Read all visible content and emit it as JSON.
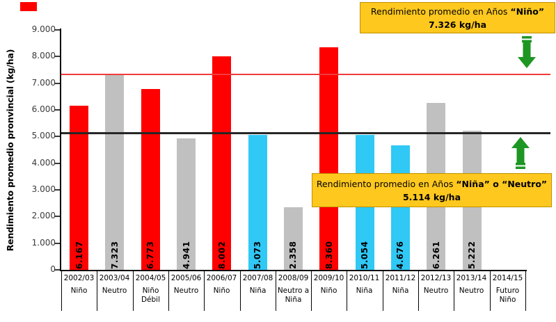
{
  "chart_data": {
    "type": "bar",
    "title": "",
    "ylabel": "Rendimiento promedio pronvincial (kg/ha)",
    "ylim": [
      0,
      9000
    ],
    "grid": false,
    "legend_position": "none",
    "y_tick_labels": [
      "9.000",
      "8.000",
      "7.000",
      "6.000",
      "5.000",
      "4.000",
      "3.000",
      "2.000",
      "1.000",
      "0"
    ],
    "categories": [
      "2002/03",
      "2003/04",
      "2004/05",
      "2005/06",
      "2006/07",
      "2007/08",
      "2008/09",
      "2009/10",
      "2010/11",
      "2011/12",
      "2012/13",
      "2013/14",
      "2014/15"
    ],
    "conditions": [
      "Niño",
      "Neutro",
      "Niño Débil",
      "Neutro",
      "Niño",
      "Niña",
      "Neutro a Niña",
      "Niño",
      "Niña",
      "Niña",
      "Neutro",
      "Neutro",
      "Futuro Niño"
    ],
    "values": [
      6167,
      7323,
      6773,
      4941,
      8002,
      5073,
      2358,
      8360,
      5054,
      4676,
      6261,
      5222,
      null
    ],
    "value_labels": [
      "6.167",
      "7.323",
      "6.773",
      "4.941",
      "8.002",
      "5.073",
      "2.358",
      "8.360",
      "5.054",
      "4.676",
      "6.261",
      "5.222",
      ""
    ],
    "bar_color_keys": [
      "nino",
      "neutro",
      "nino",
      "neutro",
      "nino",
      "nina",
      "neutro",
      "nino",
      "nina",
      "nina",
      "neutro",
      "neutro",
      null
    ],
    "reference_lines": [
      {
        "name": "promedio_nino",
        "value": 7326,
        "color": "#F23B3B",
        "thickness": 2
      },
      {
        "name": "promedio_nina_neutro",
        "value": 5114,
        "color": "#262626",
        "thickness": 3
      }
    ]
  },
  "colors": {
    "nino": "#FF0000",
    "neutro": "#C0C0C0",
    "nina": "#30C8F5",
    "annotation_bg": "#FFC81E",
    "annotation_border": "#BF9000",
    "arrow_green": "#1E9623"
  },
  "annotations": {
    "nino": {
      "prefix": "Rendimiento promedio en Años ",
      "bold": "“Niño”",
      "value": "7.326 kg/ha"
    },
    "nina": {
      "prefix": "Rendimiento promedio en Años ",
      "bold": "“Niña” o “Neutro”",
      "value": "5.114 kg/ha"
    }
  },
  "icons": {
    "arrow_down": "green-arrow-down",
    "arrow_up": "green-arrow-up"
  }
}
